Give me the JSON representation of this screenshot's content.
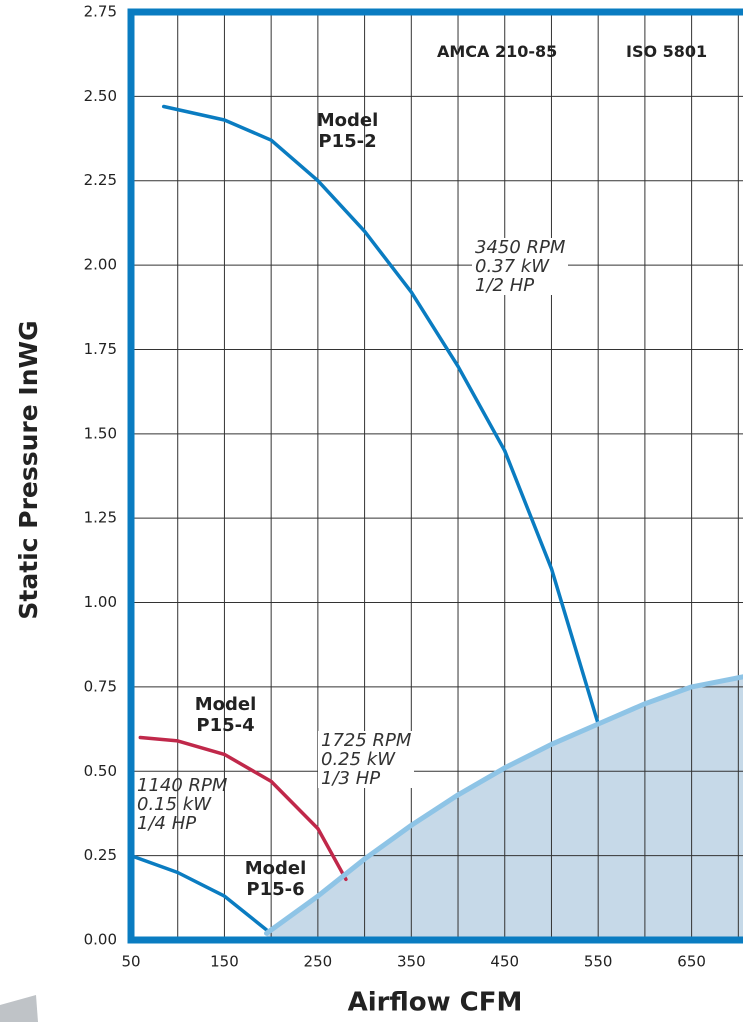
{
  "chart_data": {
    "type": "line",
    "ylabel": "Static Pressure InWG",
    "xlabel": "Airflow CFM",
    "xlim": [
      50,
      705
    ],
    "ylim": [
      0,
      2.75
    ],
    "xticks": [
      50,
      150,
      250,
      350,
      450,
      550,
      650
    ],
    "xgrid": [
      100,
      150,
      200,
      250,
      300,
      350,
      400,
      450,
      500,
      550,
      600,
      650,
      700
    ],
    "yticks": [
      {
        "value": 0,
        "label": "0.00"
      },
      0.25,
      {
        "value": 0.5,
        "label": "0.50"
      },
      0.75,
      {
        "value": 1,
        "label": "1.00"
      },
      1.25,
      {
        "value": 1.5,
        "label": "1.50"
      },
      1.75,
      {
        "value": 2,
        "label": "2.00"
      },
      2.25,
      {
        "value": 2.5,
        "label": "2.50"
      },
      2.75
    ],
    "grid": true,
    "frame_color": "#0a7cc1",
    "annotations": {
      "standard_1": "AMCA 210-85",
      "standard_2": "ISO 5801",
      "motor_p15_2": [
        "3450 RPM",
        "0.37 kW",
        "1/2 HP"
      ],
      "motor_p15_4": [
        "1725 RPM",
        "0.25 kW",
        "1/3 HP"
      ],
      "motor_p15_6": [
        "1140 RPM",
        "0.15 kW",
        "1/4 HP"
      ]
    },
    "series": [
      {
        "name": "Model P15-2",
        "color": "#0a7cc1",
        "x": [
          85,
          150,
          200,
          250,
          300,
          350,
          400,
          450,
          500,
          550
        ],
        "values": [
          2.47,
          2.43,
          2.37,
          2.25,
          2.1,
          1.92,
          1.7,
          1.45,
          1.1,
          0.64
        ]
      },
      {
        "name": "Model P15-4",
        "color": "#c0284a",
        "x": [
          60,
          100,
          150,
          200,
          250,
          280
        ],
        "values": [
          0.6,
          0.59,
          0.55,
          0.47,
          0.33,
          0.18
        ]
      },
      {
        "name": "Model P15-6",
        "color": "#0a7cc1",
        "x": [
          50,
          100,
          150,
          195
        ],
        "values": [
          0.25,
          0.2,
          0.13,
          0.03
        ]
      },
      {
        "color": "#8ec4e6",
        "fill": "#c6d9e8",
        "x": [
          195,
          250,
          300,
          350,
          400,
          450,
          500,
          550,
          600,
          650,
          705
        ],
        "values": [
          0.02,
          0.13,
          0.24,
          0.34,
          0.43,
          0.51,
          0.58,
          0.64,
          0.7,
          0.75,
          0.78
        ]
      }
    ]
  }
}
